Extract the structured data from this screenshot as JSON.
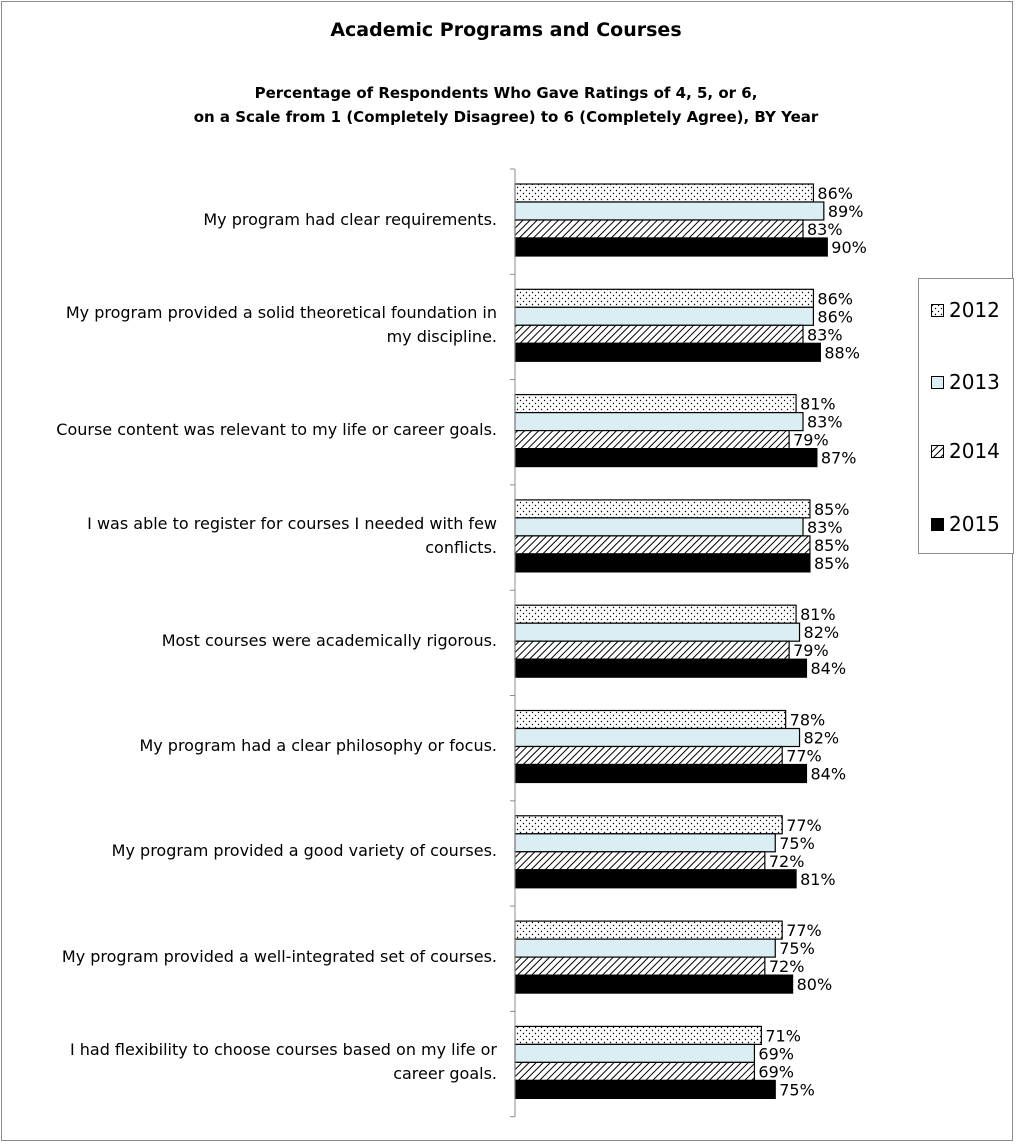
{
  "chart_data": {
    "type": "bar",
    "orientation": "horizontal",
    "title": "Academic Programs and Courses",
    "subtitle": "Percentage of Respondents Who Gave Ratings of 4, 5, or 6,\non a Scale from 1 (Completely  Disagree) to 6 (Completely Agree), BY Year",
    "categories": [
      "My program had clear requirements.",
      "My program provided a solid theoretical foundation in\nmy discipline.",
      "Course content was relevant to my life or career goals.",
      "I was able to register for courses I needed with few\nconflicts.",
      "Most courses were academically rigorous.",
      "My program had a clear philosophy or focus.",
      "My program provided a good variety of courses.",
      "My program provided a well-integrated set of courses.",
      "I had flexibility to choose courses based on my life or\ncareer goals."
    ],
    "series": [
      {
        "name": "2012",
        "values": [
          86,
          86,
          81,
          85,
          81,
          78,
          77,
          77,
          71
        ],
        "labels": [
          "86%",
          "86%",
          "81%",
          "85%",
          "81%",
          "78%",
          "77%",
          "77%",
          "71%"
        ]
      },
      {
        "name": "2013",
        "values": [
          89,
          86,
          83,
          83,
          82,
          82,
          75,
          75,
          69
        ],
        "labels": [
          "89%",
          "86%",
          "83%",
          "83%",
          "82%",
          "82%",
          "75%",
          "75%",
          "69%"
        ]
      },
      {
        "name": "2014",
        "values": [
          83,
          83,
          79,
          85,
          79,
          77,
          72,
          72,
          69
        ],
        "labels": [
          "83%",
          "83%",
          "79%",
          "85%",
          "79%",
          "77%",
          "72%",
          "72%",
          "69%"
        ]
      },
      {
        "name": "2015",
        "values": [
          90,
          88,
          87,
          85,
          84,
          84,
          81,
          80,
          75
        ],
        "labels": [
          "90%",
          "88%",
          "87%",
          "85%",
          "84%",
          "84%",
          "81%",
          "80%",
          "75%"
        ]
      }
    ],
    "value_unit": "%",
    "xlim": [
      0,
      100
    ],
    "legend_position": "right",
    "grid": false,
    "series_fills": {
      "2012": "dotted pattern on white",
      "2013": "#dbeef3",
      "2014": "diagonal hatch",
      "2015": "#000000"
    }
  },
  "legend": {
    "items": [
      "2012",
      "2013",
      "2014",
      "2015"
    ]
  }
}
